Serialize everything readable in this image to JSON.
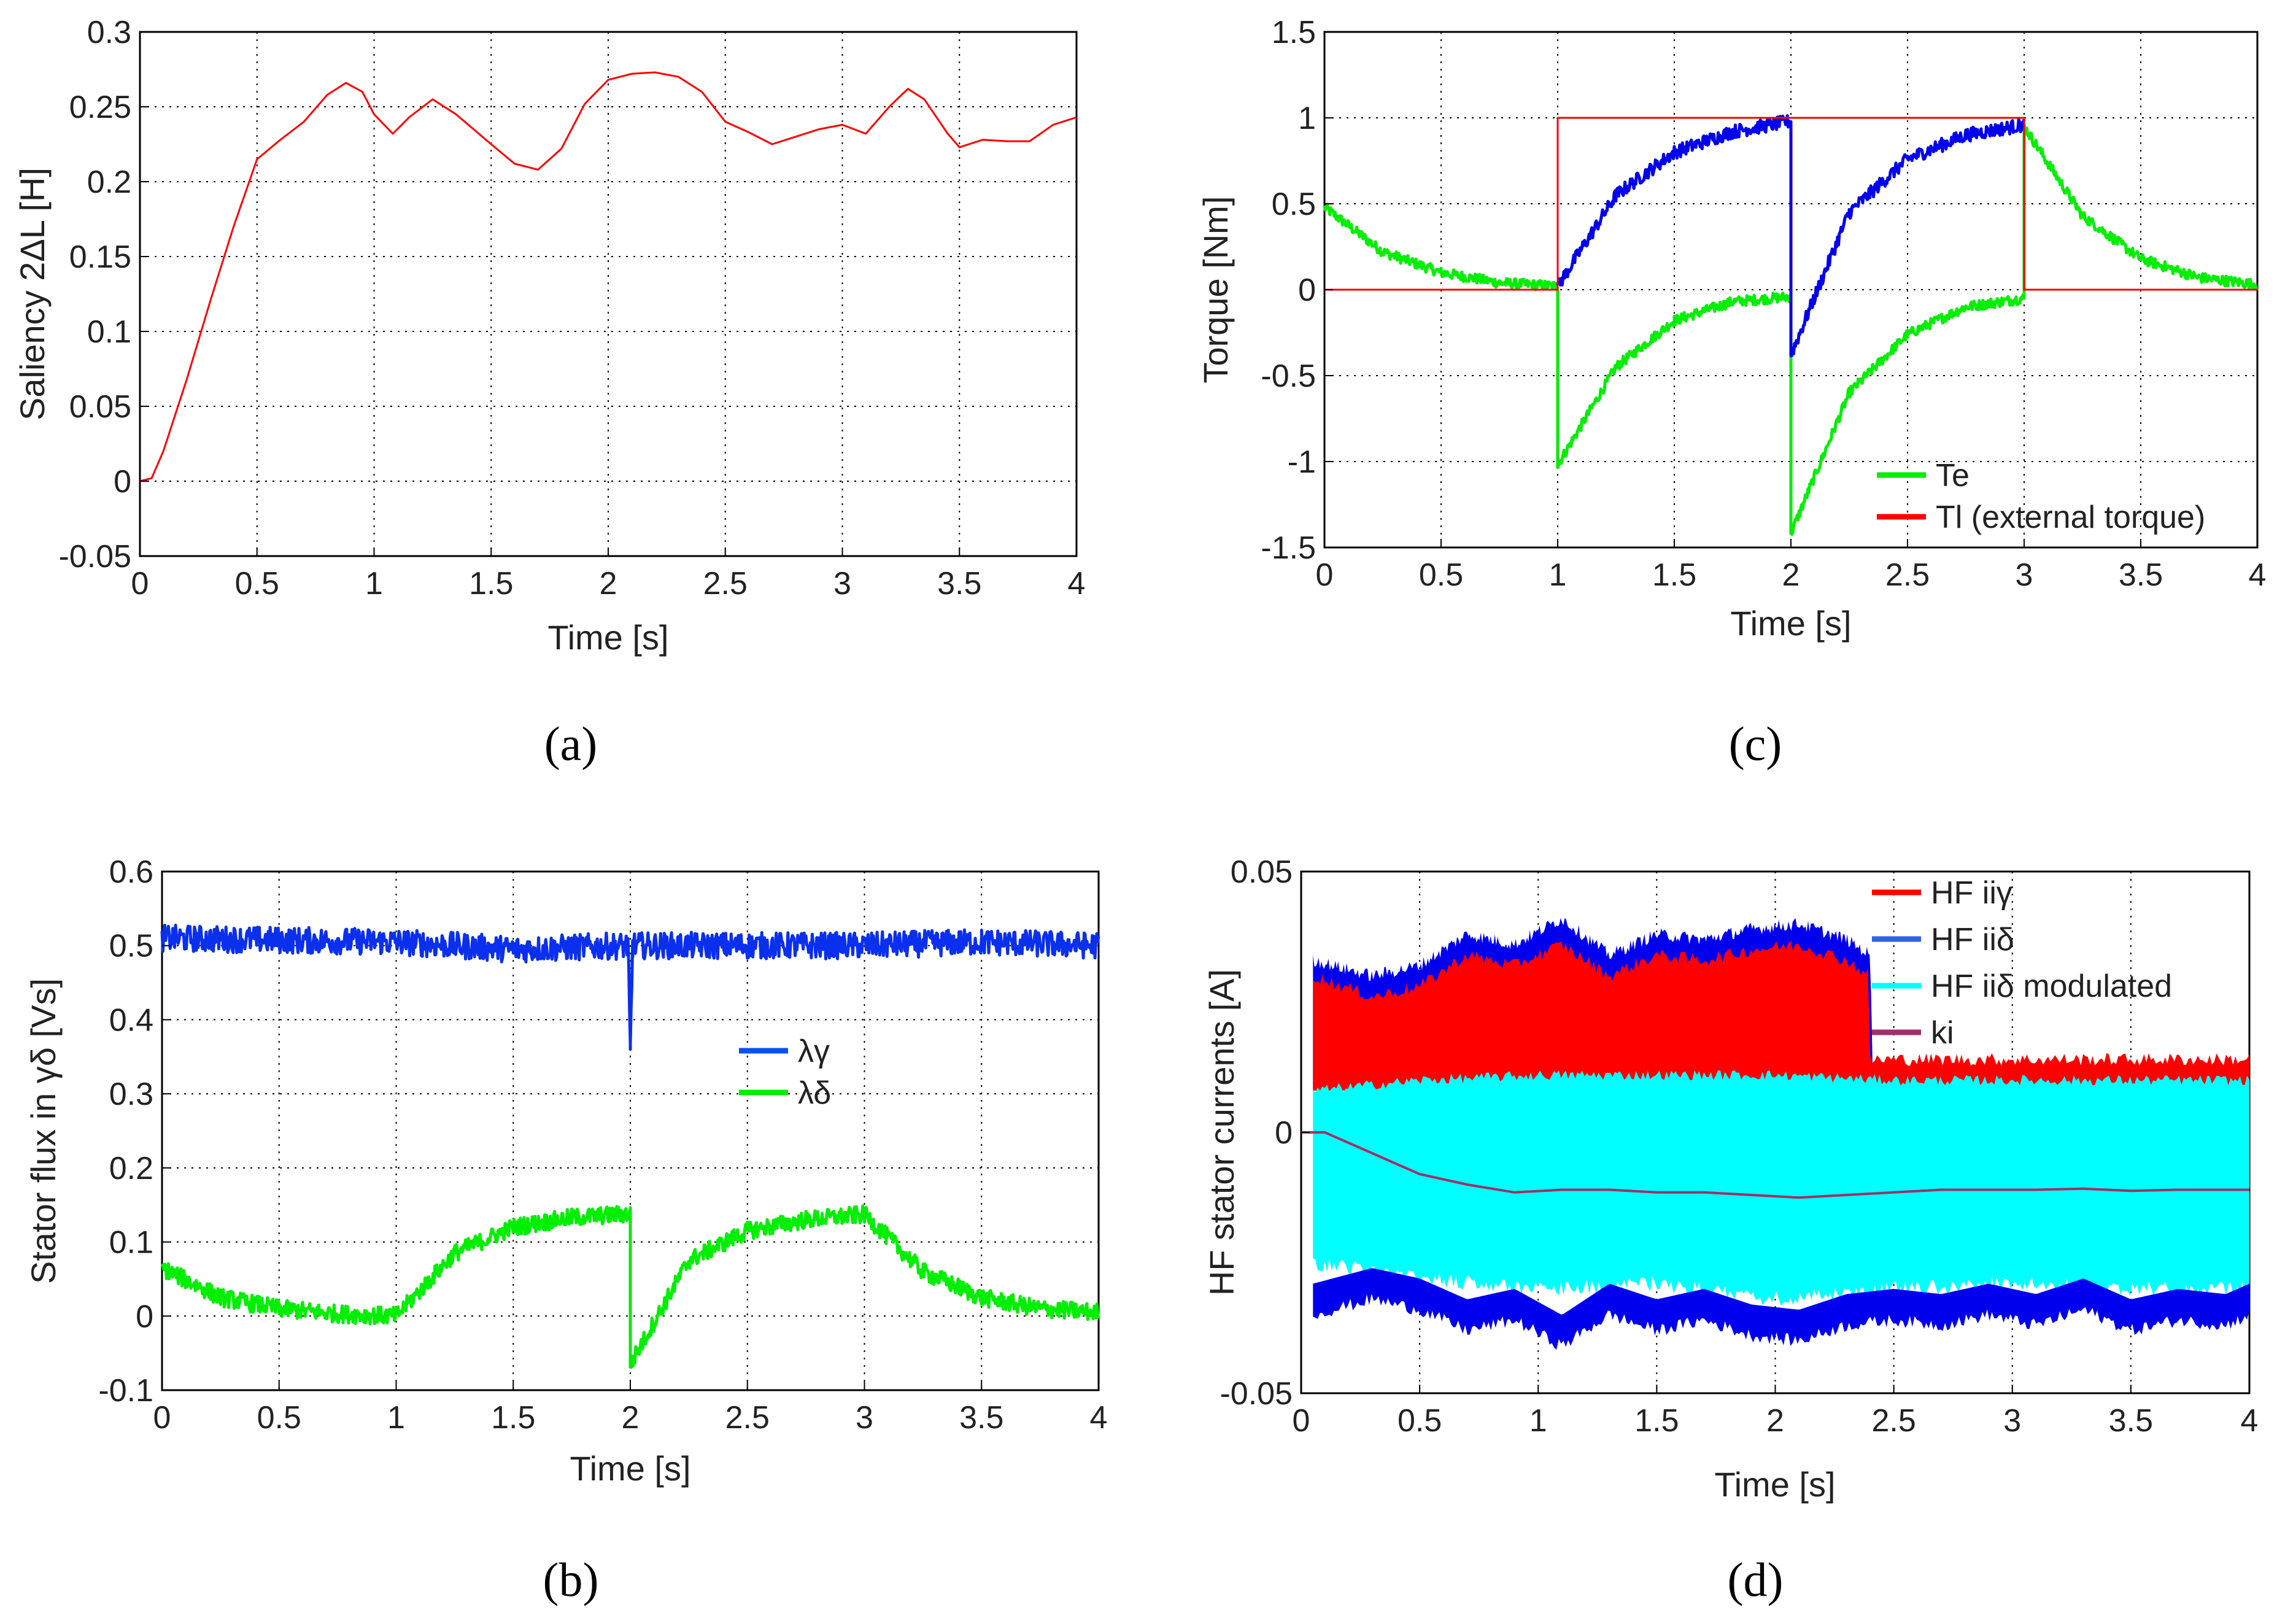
{
  "chart_data": [
    {
      "panel": "a",
      "caption": "(a)",
      "type": "line",
      "xlabel": "Time [s]",
      "ylabel": "Saliency 2ΔL [H]",
      "xlim": [
        0,
        4
      ],
      "ylim": [
        -0.05,
        0.3
      ],
      "xticks": [
        0,
        0.5,
        1,
        1.5,
        2,
        2.5,
        3,
        3.5,
        4
      ],
      "xtick_labels": [
        "0",
        "0.5",
        "1",
        "1.5",
        "2",
        "2.5",
        "3",
        "3.5",
        "4"
      ],
      "yticks": [
        -0.05,
        0,
        0.05,
        0.1,
        0.15,
        0.2,
        0.25,
        0.3
      ],
      "ytick_labels": [
        "-0.05",
        "0",
        "0.05",
        "0.1",
        "0.15",
        "0.2",
        "0.25",
        "0.3"
      ],
      "grid": true,
      "series": [
        {
          "name": "saliency",
          "color": "#ff0000",
          "x": [
            0,
            0.05,
            0.1,
            0.2,
            0.3,
            0.4,
            0.5,
            0.6,
            0.7,
            0.8,
            0.88,
            0.95,
            1.0,
            1.08,
            1.15,
            1.25,
            1.35,
            1.5,
            1.6,
            1.7,
            1.8,
            1.9,
            2.0,
            2.1,
            2.2,
            2.3,
            2.4,
            2.5,
            2.6,
            2.7,
            2.8,
            2.9,
            3.0,
            3.1,
            3.2,
            3.28,
            3.35,
            3.45,
            3.5,
            3.6,
            3.7,
            3.8,
            3.9,
            4.0
          ],
          "y": [
            0,
            0.002,
            0.02,
            0.068,
            0.12,
            0.17,
            0.215,
            0.228,
            0.24,
            0.258,
            0.266,
            0.26,
            0.245,
            0.232,
            0.243,
            0.255,
            0.245,
            0.225,
            0.212,
            0.208,
            0.222,
            0.252,
            0.268,
            0.272,
            0.273,
            0.27,
            0.26,
            0.24,
            0.233,
            0.225,
            0.23,
            0.235,
            0.238,
            0.232,
            0.25,
            0.262,
            0.255,
            0.232,
            0.223,
            0.228,
            0.227,
            0.227,
            0.238,
            0.243
          ]
        }
      ]
    },
    {
      "panel": "c",
      "caption": "(c)",
      "type": "line",
      "xlabel": "Time [s]",
      "ylabel": "Torque [Nm]",
      "xlim": [
        0,
        4
      ],
      "ylim": [
        -1.5,
        1.5
      ],
      "xticks": [
        0,
        0.5,
        1,
        1.5,
        2,
        2.5,
        3,
        3.5,
        4
      ],
      "xtick_labels": [
        "0",
        "0.5",
        "1",
        "1.5",
        "2",
        "2.5",
        "3",
        "3.5",
        "4"
      ],
      "yticks": [
        -1.5,
        -1,
        -0.5,
        0,
        0.5,
        1,
        1.5
      ],
      "ytick_labels": [
        "-1.5",
        "-1",
        "-0.5",
        "0",
        "0.5",
        "1",
        "1.5"
      ],
      "grid": true,
      "legend": [
        "Te",
        "Tl (external torque)"
      ],
      "legend_position": "bottom-right",
      "series": [
        {
          "name": "Te",
          "color": "#00ee00",
          "noise": 0.03,
          "x": [
            0,
            0.25,
            0.5,
            0.75,
            1.0,
            1.0,
            1.25,
            1.5,
            1.75,
            2.0,
            2.0,
            2.25,
            2.5,
            2.75,
            3.0,
            3.0,
            3.25,
            3.5,
            3.75,
            4.0
          ],
          "y": [
            0.48,
            0.22,
            0.1,
            0.04,
            0.02,
            -1.02,
            -0.45,
            -0.18,
            -0.07,
            -0.04,
            -1.42,
            -0.6,
            -0.26,
            -0.1,
            -0.05,
            0.95,
            0.43,
            0.18,
            0.07,
            0.03
          ]
        },
        {
          "name": "Te (blue segment)",
          "color": "#0000ee",
          "noise": 0.04,
          "x": [
            1.0,
            1.25,
            1.5,
            1.75,
            2.0,
            2.0,
            2.25,
            2.5,
            2.75,
            3.0
          ],
          "y": [
            0.02,
            0.55,
            0.8,
            0.92,
            0.98,
            -0.38,
            0.45,
            0.76,
            0.9,
            0.96
          ]
        },
        {
          "name": "Tl (external torque)",
          "color": "#ff0000",
          "noise": 0,
          "x": [
            0,
            1.0,
            1.0,
            3.0,
            3.0,
            4.0
          ],
          "y": [
            0,
            0,
            1,
            1,
            0,
            0
          ]
        }
      ]
    },
    {
      "panel": "b",
      "caption": "(b)",
      "type": "line",
      "xlabel": "Time [s]",
      "ylabel": "Stator flux in γδ [Vs]",
      "xlim": [
        0,
        4
      ],
      "ylim": [
        -0.1,
        0.6
      ],
      "xticks": [
        0,
        0.5,
        1,
        1.5,
        2,
        2.5,
        3,
        3.5,
        4
      ],
      "xtick_labels": [
        "0",
        "0.5",
        "1",
        "1.5",
        "2",
        "2.5",
        "3",
        "3.5",
        "4"
      ],
      "yticks": [
        -0.1,
        0,
        0.1,
        0.2,
        0.3,
        0.4,
        0.5,
        0.6
      ],
      "ytick_labels": [
        "-0.1",
        "0",
        "0.1",
        "0.2",
        "0.3",
        "0.4",
        "0.5",
        "0.6"
      ],
      "grid": true,
      "legend": [
        "λγ",
        "λδ"
      ],
      "legend_position": "center-right",
      "series": [
        {
          "name": "λγ",
          "color": "#0a30ee",
          "noise": 0.018,
          "x": [
            0,
            1.0,
            1.5,
            1.99,
            2.0,
            2.0,
            2.01,
            2.5,
            3.0,
            3.5,
            4.0
          ],
          "y": [
            0.51,
            0.505,
            0.495,
            0.5,
            0.36,
            0.36,
            0.5,
            0.5,
            0.5,
            0.505,
            0.5
          ]
        },
        {
          "name": "λδ",
          "color": "#00ee00",
          "noise": 0.012,
          "x": [
            0,
            0.25,
            0.5,
            0.75,
            1.0,
            1.25,
            1.5,
            1.75,
            2.0,
            2.0,
            2.25,
            2.5,
            2.75,
            3.0,
            3.25,
            3.5,
            3.75,
            4.0
          ],
          "y": [
            0.065,
            0.025,
            0.01,
            0.003,
            0.0,
            0.085,
            0.12,
            0.133,
            0.138,
            -0.065,
            0.075,
            0.115,
            0.13,
            0.137,
            0.06,
            0.025,
            0.01,
            0.005
          ]
        }
      ]
    },
    {
      "panel": "d",
      "caption": "(d)",
      "type": "area",
      "xlabel": "Time [s]",
      "ylabel": "HF stator currents [A]",
      "xlim": [
        0,
        4
      ],
      "ylim": [
        -0.05,
        0.05
      ],
      "xticks": [
        0,
        0.5,
        1,
        1.5,
        2,
        2.5,
        3,
        3.5,
        4
      ],
      "xtick_labels": [
        "0",
        "0.5",
        "1",
        "1.5",
        "2",
        "2.5",
        "3",
        "3.5",
        "4"
      ],
      "yticks": [
        -0.05,
        0,
        0.05
      ],
      "ytick_labels": [
        "-0.05",
        "0",
        "0.05"
      ],
      "grid": true,
      "legend": [
        "HF iiγ",
        "HF iiδ",
        "HF iiδ modulated",
        "ki"
      ],
      "legend_position": "top-right",
      "series": [
        {
          "name": "HF iiδ upper envelope",
          "color": "#0000ee",
          "x": [
            0.05,
            0.3,
            0.5,
            0.7,
            0.9,
            1.1,
            1.3,
            1.5,
            1.7,
            1.9,
            2.1,
            2.3,
            2.4,
            2.41
          ],
          "y": [
            0.033,
            0.03,
            0.032,
            0.038,
            0.036,
            0.041,
            0.034,
            0.038,
            0.037,
            0.039,
            0.04,
            0.037,
            0.034,
            0.014
          ]
        },
        {
          "name": "HF iiγ",
          "color": "#ff0000",
          "x": [
            0.05,
            0.3,
            0.5,
            0.7,
            0.9,
            1.1,
            1.3,
            1.5,
            1.7,
            1.9,
            2.1,
            2.3,
            2.4,
            2.4,
            3.0,
            3.5,
            4.0
          ],
          "y": [
            0.03,
            0.026,
            0.028,
            0.034,
            0.032,
            0.036,
            0.03,
            0.034,
            0.033,
            0.035,
            0.036,
            0.033,
            0.03,
            0.014,
            0.014,
            0.014,
            0.014
          ]
        },
        {
          "name": "HF iiδ modulated",
          "color": "#00ffff",
          "x": [
            0.05,
            0.5,
            1.0,
            1.5,
            2.0,
            2.5,
            3.0,
            3.5,
            4.0
          ],
          "y_upper": [
            0.008,
            0.01,
            0.011,
            0.011,
            0.011,
            0.01,
            0.01,
            0.01,
            0.01
          ],
          "y_lower": [
            -0.025,
            -0.028,
            -0.03,
            -0.029,
            -0.032,
            -0.03,
            -0.029,
            -0.03,
            -0.03
          ]
        },
        {
          "name": "HF iiδ lower envelope",
          "color": "#0000ee",
          "x": [
            0.05,
            0.3,
            0.5,
            0.7,
            0.9,
            1.1,
            1.3,
            1.5,
            1.7,
            1.9,
            2.1,
            2.3,
            2.5,
            2.7,
            2.9,
            3.1,
            3.3,
            3.5,
            3.7,
            3.9,
            4.0
          ],
          "y": [
            -0.035,
            -0.032,
            -0.034,
            -0.038,
            -0.036,
            -0.041,
            -0.035,
            -0.038,
            -0.036,
            -0.039,
            -0.04,
            -0.037,
            -0.036,
            -0.037,
            -0.035,
            -0.037,
            -0.034,
            -0.038,
            -0.036,
            -0.037,
            -0.035
          ]
        },
        {
          "name": "ki",
          "color": "#a0306a",
          "x": [
            0,
            0.1,
            0.3,
            0.5,
            0.7,
            0.9,
            1.1,
            1.3,
            1.5,
            1.7,
            1.9,
            2.1,
            2.3,
            2.5,
            2.7,
            2.9,
            3.1,
            3.3,
            3.5,
            3.7,
            4.0
          ],
          "y": [
            0,
            0.0,
            -0.004,
            -0.008,
            -0.01,
            -0.0115,
            -0.011,
            -0.011,
            -0.0115,
            -0.0115,
            -0.012,
            -0.0125,
            -0.012,
            -0.0115,
            -0.011,
            -0.011,
            -0.011,
            -0.0108,
            -0.0112,
            -0.011,
            -0.011
          ]
        }
      ]
    }
  ]
}
